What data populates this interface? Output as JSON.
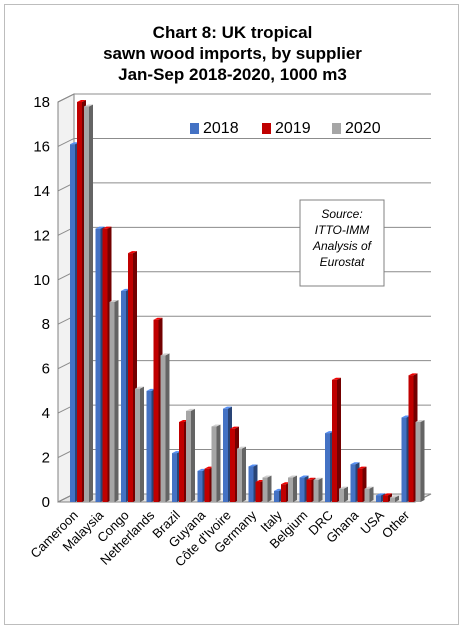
{
  "chart_data": {
    "type": "bar",
    "title_lines": [
      "Chart 8: UK tropical",
      "sawn wood imports, by supplier",
      "Jan-Sep 2018-2020, 1000 m3"
    ],
    "categories": [
      "Cameroon",
      "Malaysia",
      "Congo",
      "Netherlands",
      "Brazil",
      "Guyana",
      "Côte d'Ivoire",
      "Germany",
      "Italy",
      "Belgium",
      "DRC",
      "Ghana",
      "USA",
      "Other"
    ],
    "series": [
      {
        "name": "2018",
        "color": "#4472C4",
        "values": [
          16.1,
          12.3,
          9.5,
          5.0,
          2.2,
          1.4,
          4.2,
          1.6,
          0.5,
          1.1,
          3.1,
          1.7,
          0.3,
          3.8
        ]
      },
      {
        "name": "2019",
        "color": "#C00000",
        "values": [
          18.0,
          12.3,
          11.2,
          8.2,
          3.6,
          1.5,
          3.3,
          0.9,
          0.8,
          1.0,
          5.5,
          1.5,
          0.3,
          5.7
        ]
      },
      {
        "name": "2020",
        "color": "#A6A6A6",
        "values": [
          17.8,
          9.0,
          5.1,
          6.6,
          4.1,
          3.4,
          2.4,
          1.1,
          1.1,
          1.0,
          0.6,
          0.6,
          0.2,
          3.6
        ]
      }
    ],
    "ylim": [
      0,
      18
    ],
    "yticks": [
      "0",
      "2",
      "4",
      "6",
      "8",
      "10",
      "12",
      "14",
      "16",
      "18"
    ],
    "grid": true,
    "legend_position": "top-right",
    "annotation_lines": [
      "Source:",
      "ITTO-IMM",
      "Analysis of",
      "Eurostat"
    ]
  }
}
